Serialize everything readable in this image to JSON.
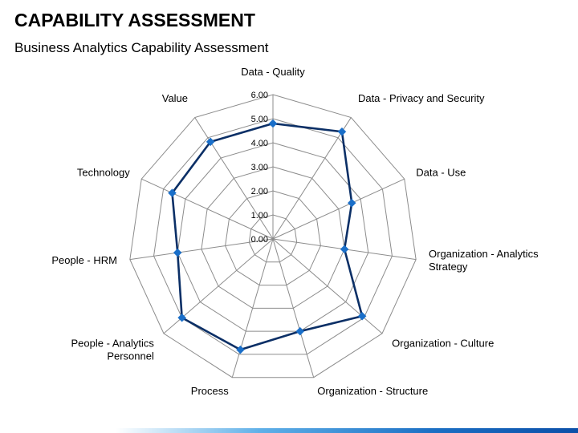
{
  "slide": {
    "title": "CAPABILITY ASSESSMENT",
    "subtitle": "Business Analytics Capability Assessment"
  },
  "colors": {
    "series": "#0b2f66",
    "marker": "#1a6fc9",
    "grid": "#8c8c8c",
    "accent_bar": "#1b6fc4"
  },
  "chart_data": {
    "type": "radar",
    "title": "",
    "categories": [
      "Data - Quality",
      "Data - Privacy and Security",
      "Data - Use",
      "Organization - Analytics Strategy",
      "Organization - Culture",
      "Organization - Structure",
      "Process",
      "People - Analytics Personnel",
      "People - HRM",
      "Technology",
      "Value"
    ],
    "category_lines": [
      [
        "Data - Quality"
      ],
      [
        "Data - Privacy and Security"
      ],
      [
        "Data - Use"
      ],
      [
        "Organization - Analytics",
        "Strategy"
      ],
      [
        "Organization - Culture"
      ],
      [
        "Organization - Structure"
      ],
      [
        "Process"
      ],
      [
        "People - Analytics",
        "Personnel"
      ],
      [
        "People - HRM"
      ],
      [
        "Technology"
      ],
      [
        "Value"
      ]
    ],
    "series": [
      {
        "values": [
          4.8,
          5.3,
          3.6,
          3.0,
          4.9,
          4.0,
          4.8,
          5.0,
          4.0,
          4.6,
          4.8
        ]
      }
    ],
    "rlim": [
      0,
      6
    ],
    "tick_labels": [
      "0.00",
      "1.00",
      "2.00",
      "3.00",
      "4.00",
      "5.00",
      "6.00"
    ],
    "grid": true,
    "legend": "none"
  }
}
